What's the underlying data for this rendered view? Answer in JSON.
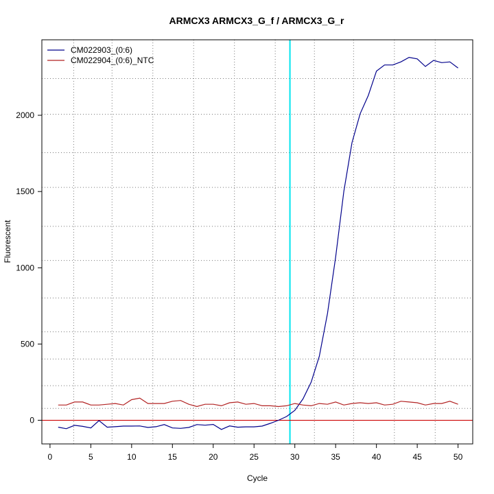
{
  "chart_data": {
    "type": "line",
    "title": "ARMCX3  ARMCX3_G_f / ARMCX3_G_r",
    "xlabel": "Cycle",
    "ylabel": "Fluorescent",
    "xlim": [
      -1.0,
      51.8
    ],
    "ylim": [
      -155,
      2495
    ],
    "x_ticks": [
      0,
      5,
      10,
      15,
      20,
      25,
      30,
      35,
      40,
      45,
      50
    ],
    "y_ticks": [
      0,
      500,
      1000,
      1500,
      2000
    ],
    "x_grid": [
      2.9,
      7.6,
      12.6,
      17.6,
      22.6,
      27.6,
      32.4,
      37.2,
      42.2,
      47.2
    ],
    "y_grid": [
      78,
      227,
      402,
      580,
      802,
      1048,
      1272,
      1527,
      1755,
      2007,
      2241
    ],
    "grid": true,
    "legend_position": "top-left",
    "threshold": {
      "x": 29.4,
      "color": "#00e5ee"
    },
    "baseline": {
      "y": 0,
      "color": "#cc0000"
    },
    "series": [
      {
        "name": "CM022903_(0:6)",
        "color": "#00008b",
        "x": [
          1,
          2,
          3,
          4,
          5,
          6,
          7,
          8,
          9,
          10,
          11,
          12,
          13,
          14,
          15,
          16,
          17,
          18,
          19,
          20,
          21,
          22,
          23,
          24,
          25,
          26,
          27,
          28,
          29,
          30,
          31,
          32,
          33,
          34,
          35,
          36,
          37,
          38,
          39,
          40,
          41,
          42,
          43,
          44,
          45,
          46,
          47,
          48,
          49,
          50
        ],
        "y": [
          -45,
          -55,
          -33,
          -40,
          -50,
          -2,
          -45,
          -42,
          -38,
          -38,
          -37,
          -47,
          -42,
          -28,
          -50,
          -53,
          -47,
          -28,
          -32,
          -27,
          -60,
          -37,
          -45,
          -43,
          -43,
          -38,
          -20,
          0,
          25,
          65,
          140,
          250,
          420,
          700,
          1070,
          1500,
          1820,
          2010,
          2130,
          2290,
          2330,
          2330,
          2350,
          2380,
          2370,
          2320,
          2360,
          2345,
          2350,
          2310
        ]
      },
      {
        "name": "CM022904_(0:6)_NTC",
        "color": "#b22222",
        "x": [
          1,
          2,
          3,
          4,
          5,
          6,
          7,
          8,
          9,
          10,
          11,
          12,
          13,
          14,
          15,
          16,
          17,
          18,
          19,
          20,
          21,
          22,
          23,
          24,
          25,
          26,
          27,
          28,
          29,
          30,
          31,
          32,
          33,
          34,
          35,
          36,
          37,
          38,
          39,
          40,
          41,
          42,
          43,
          44,
          45,
          46,
          47,
          48,
          49,
          50
        ],
        "y": [
          100,
          100,
          120,
          120,
          100,
          100,
          105,
          110,
          100,
          135,
          145,
          110,
          110,
          110,
          125,
          130,
          105,
          90,
          105,
          105,
          95,
          115,
          120,
          105,
          110,
          95,
          95,
          90,
          95,
          110,
          100,
          95,
          110,
          105,
          120,
          100,
          110,
          115,
          110,
          115,
          100,
          105,
          125,
          120,
          115,
          100,
          110,
          110,
          125,
          105
        ]
      }
    ]
  }
}
